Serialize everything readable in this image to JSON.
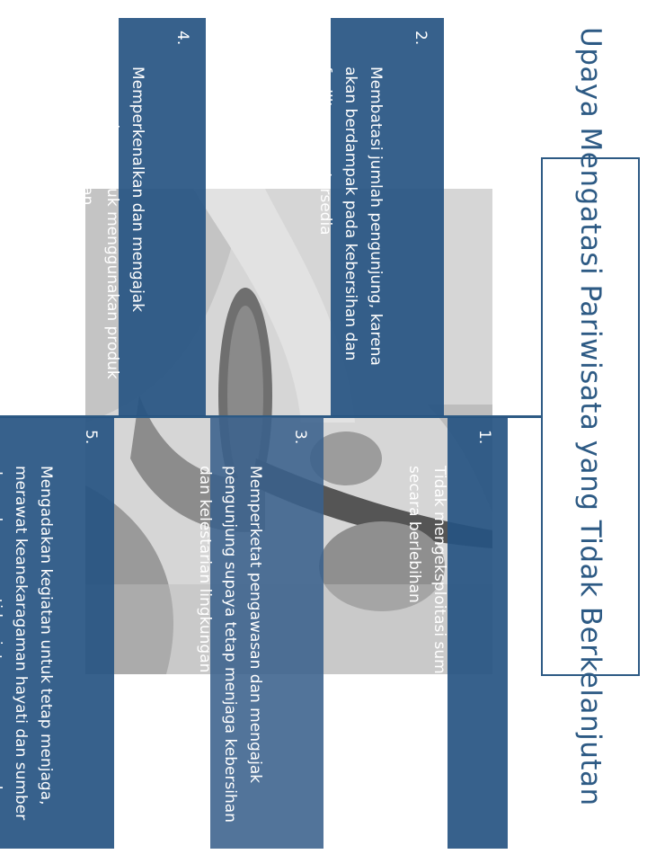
{
  "title": "Upaya Mengatasi Pariwisata yang Tidak Berkelanjutan",
  "items": [
    {
      "number": "1.",
      "text": "Tidak mengeksploitasi sumber daya alam secara berlebihan"
    },
    {
      "number": "2.",
      "text": "Membatasi jumlah pengunjung, karena akan berdampak pada kebersihan dan fasilitas yang tersedia"
    },
    {
      "number": "3.",
      "text": "Memperketat pengawasan dan mengajak pengunjung supaya tetap menjaga kebersihan dan kelestarian lingkungan"
    },
    {
      "number": "4.",
      "text": "Memperkenalkan dan mengajak pengunjung untuk menggunakan produk ramah lingkungan"
    },
    {
      "number": "5.",
      "text": "Mengadakan kegiatan untuk tetap menjaga, merawat keanekaragaman hayati dan sumber daya alam, seperti kegiatan menanam pohon, sosialisasi menjaga sumber daya alam, dll."
    }
  ],
  "colors": {
    "accent": "#2d5a84",
    "card": "#265482"
  }
}
